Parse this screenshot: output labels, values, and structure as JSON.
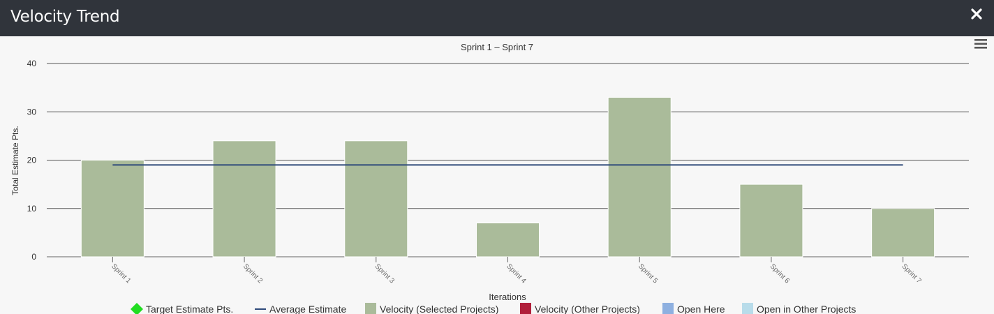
{
  "window": {
    "title": "Velocity Trend",
    "close_icon": "close-icon"
  },
  "chart_menu": {
    "icon": "hamburger-menu-icon"
  },
  "chart_data": {
    "type": "bar",
    "title": "Sprint 1 – Sprint 7",
    "xlabel": "Iterations",
    "ylabel": "Total Estimate Pts.",
    "ylim": [
      0,
      40
    ],
    "yticks": [
      0,
      10,
      20,
      30,
      40
    ],
    "categories": [
      "Sprint 1",
      "Sprint 2",
      "Sprint 3",
      "Sprint 4",
      "Sprint 5",
      "Sprint 6",
      "Sprint 7"
    ],
    "series": [
      {
        "name": "Velocity (Selected Projects)",
        "type": "bar",
        "color": "#aabb9a",
        "values": [
          20,
          24,
          24,
          7,
          33,
          15,
          10
        ]
      },
      {
        "name": "Average Estimate",
        "type": "line",
        "color": "#2e4a7a",
        "values": [
          19,
          19,
          19,
          19,
          19,
          19,
          19
        ]
      }
    ],
    "grid": true,
    "legend_position": "bottom",
    "legend": [
      {
        "label": "Target Estimate Pts.",
        "symbol": "diamond",
        "color": "#22dd22"
      },
      {
        "label": "Average Estimate",
        "symbol": "line",
        "color": "#2e4a7a"
      },
      {
        "label": "Velocity (Selected Projects)",
        "symbol": "square",
        "color": "#aabb9a"
      },
      {
        "label": "Velocity (Other Projects)",
        "symbol": "square",
        "color": "#b01e3a"
      },
      {
        "label": "Open Here",
        "symbol": "square",
        "color": "#8eb0e0"
      },
      {
        "label": "Open in Other Projects",
        "symbol": "square",
        "color": "#b8dcea"
      }
    ]
  }
}
